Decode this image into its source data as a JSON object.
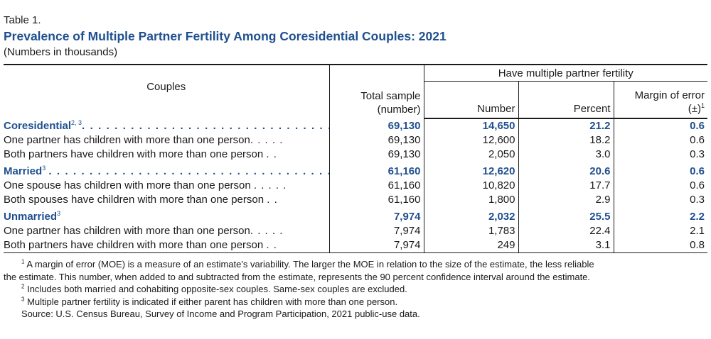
{
  "table_label": "Table 1.",
  "title": "Prevalence of Multiple Partner Fertility Among Coresidential Couples: 2021",
  "subtitle": "(Numbers in thousands)",
  "headers": {
    "couples": "Couples",
    "group": "Have multiple partner fertility",
    "total_sample_line1": "Total sample",
    "total_sample_line2": "(number)",
    "number": "Number",
    "percent": "Percent",
    "moe_line1": "Margin of error",
    "moe_line2": "(±)",
    "moe_sup": "1"
  },
  "rows": [
    {
      "label": "Coresidential",
      "sup": "2, 3",
      "dots": ". . . . . . . . . . . . . . . . . . . . . . . . . . . . . . . . . . . . .",
      "total": "69,130",
      "number": "14,650",
      "percent": "21.2",
      "moe": "0.6"
    },
    {
      "label": "One partner has children with more than one person",
      "dots": ". . . . .",
      "total": "69,130",
      "number": "12,600",
      "percent": "18.2",
      "moe": "0.6"
    },
    {
      "label": "Both partners have children with more than one person",
      "dots": ". .",
      "total": "69,130",
      "number": "2,050",
      "percent": "3.0",
      "moe": "0.3"
    },
    {
      "label": "Married",
      "sup": "3",
      "dots": ". . . . . . . . . . . . . . . . . . . . . . . . . . . . . . . . . . . . . . .",
      "total": "61,160",
      "number": "12,620",
      "percent": "20.6",
      "moe": "0.6"
    },
    {
      "label": "One spouse has children with more than one person",
      "dots": ". . . . .",
      "total": "61,160",
      "number": "10,820",
      "percent": "17.7",
      "moe": "0.6"
    },
    {
      "label": "Both spouses have children with more than one person",
      "dots": ". .",
      "total": "61,160",
      "number": "1,800",
      "percent": "2.9",
      "moe": "0.3"
    },
    {
      "label": "Unmarried",
      "sup": "3",
      "dots": "",
      "total": "7,974",
      "number": "2,032",
      "percent": "25.5",
      "moe": "2.2"
    },
    {
      "label": "One partner has children with more than one person",
      "dots": ". . . . .",
      "total": "7,974",
      "number": "1,783",
      "percent": "22.4",
      "moe": "2.1"
    },
    {
      "label": "Both partners have children with more than one person",
      "dots": ". .",
      "total": "7,974",
      "number": "249",
      "percent": "3.1",
      "moe": "0.8"
    }
  ],
  "notes": {
    "n1_sup": "1",
    "n1_line1": "A margin of error (MOE) is a measure of an estimate's variability. The larger the MOE in relation to the size of the estimate, the less reliable",
    "n1_line2": "the estimate. This number, when added to and subtracted from the estimate, represents the 90 percent confidence interval around the estimate.",
    "n2_sup": "2",
    "n2": "Includes both married and cohabiting opposite-sex couples. Same-sex couples are excluded.",
    "n3_sup": "3",
    "n3": "Multiple partner fertility is indicated if either parent has children with more than one person.",
    "source": "Source: U.S. Census Bureau, Survey of Income and Program Participation, 2021 public-use data."
  }
}
